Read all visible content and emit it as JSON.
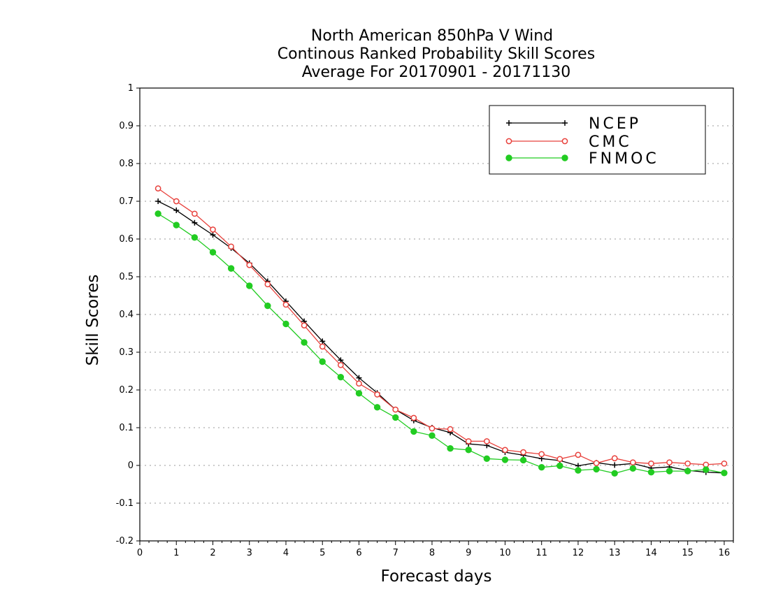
{
  "chart_data": {
    "type": "line",
    "title_lines": [
      "North American 850hPa V Wind",
      "Continous Ranked Probability Skill Scores",
      "Average For 20170901 - 20171130"
    ],
    "xlabel": "Forecast days",
    "ylabel": "Skill Scores",
    "xlim": [
      0,
      16.25
    ],
    "ylim": [
      -0.2,
      1
    ],
    "xticks": [
      0,
      1,
      2,
      3,
      4,
      5,
      6,
      7,
      8,
      9,
      10,
      11,
      12,
      13,
      14,
      15,
      16
    ],
    "yticks": [
      -0.2,
      -0.1,
      0,
      0.1,
      0.2,
      0.3,
      0.4,
      0.5,
      0.6,
      0.7,
      0.8,
      0.9,
      1
    ],
    "ytick_labels": [
      "-0.2",
      "-0.1",
      "0",
      "0.1",
      "0.2",
      "0.3",
      "0.4",
      "0.5",
      "0.6",
      "0.7",
      "0.8",
      "0.9",
      "1"
    ],
    "grid": "horizontal dotted",
    "legend_position": "top-right",
    "x": [
      0.5,
      1.0,
      1.5,
      2.0,
      2.5,
      3.0,
      3.5,
      4.0,
      4.5,
      5.0,
      5.5,
      6.0,
      6.5,
      7.0,
      7.5,
      8.0,
      8.5,
      9.0,
      9.5,
      10.0,
      10.5,
      11.0,
      11.5,
      12.0,
      12.5,
      13.0,
      13.5,
      14.0,
      14.5,
      15.0,
      15.5,
      16.0
    ],
    "series": [
      {
        "name": "NCEP",
        "color": "#000000",
        "marker": "plus",
        "values": [
          0.7,
          0.676,
          0.643,
          0.611,
          0.576,
          0.536,
          0.488,
          0.435,
          0.382,
          0.329,
          0.279,
          0.232,
          0.192,
          0.148,
          0.119,
          0.1,
          0.087,
          0.057,
          0.053,
          0.035,
          0.027,
          0.018,
          0.013,
          -0.001,
          0.007,
          0.001,
          0.005,
          -0.007,
          -0.004,
          -0.013,
          -0.018,
          -0.02
        ]
      },
      {
        "name": "CMC",
        "color": "#e8413c",
        "marker": "open-circle",
        "values": [
          0.734,
          0.7,
          0.667,
          0.625,
          0.58,
          0.531,
          0.48,
          0.426,
          0.371,
          0.315,
          0.266,
          0.217,
          0.188,
          0.148,
          0.126,
          0.098,
          0.096,
          0.064,
          0.064,
          0.041,
          0.035,
          0.03,
          0.017,
          0.028,
          0.006,
          0.019,
          0.008,
          0.005,
          0.008,
          0.005,
          0.002,
          0.005
        ]
      },
      {
        "name": "FNMOC",
        "color": "#22cc22",
        "marker": "filled-circle",
        "values": [
          0.667,
          0.637,
          0.604,
          0.565,
          0.522,
          0.476,
          0.423,
          0.375,
          0.326,
          0.275,
          0.234,
          0.191,
          0.154,
          0.127,
          0.09,
          0.079,
          0.045,
          0.041,
          0.018,
          0.015,
          0.014,
          -0.005,
          -0.001,
          -0.013,
          -0.01,
          -0.021,
          -0.008,
          -0.018,
          -0.015,
          -0.015,
          -0.011,
          -0.02
        ]
      }
    ]
  }
}
